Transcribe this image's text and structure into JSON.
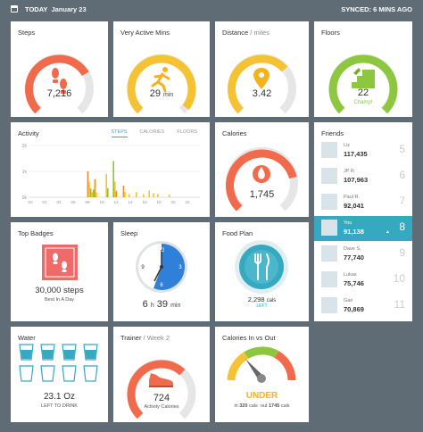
{
  "topbar": {
    "today": "TODAY",
    "date": "January 23",
    "synced": "SYNCED: 6 MINS AGO"
  },
  "tiles": {
    "steps": {
      "title": "Steps",
      "value": "7,216",
      "progress": 0.72
    },
    "active": {
      "title": "Very Active Mins",
      "value": "29",
      "unit": "min",
      "progress": 0.97
    },
    "distance": {
      "title": "Distance",
      "title_sub": "/ miles",
      "value": "3.42",
      "progress": 0.68
    },
    "floors": {
      "title": "Floors",
      "value": "22",
      "note": "Champ!",
      "progress": 1.0
    },
    "activity": {
      "title": "Activity",
      "tabs": [
        "STEPS",
        "CALORIES",
        "FLOORS"
      ]
    },
    "calories": {
      "title": "Calories",
      "value": "1,745",
      "progress": 0.78
    },
    "badges": {
      "title": "Top Badges",
      "value": "30,000 steps",
      "note": "Best In A Day"
    },
    "sleep": {
      "title": "Sleep",
      "hours": "6",
      "h": "h",
      "mins": "39",
      "min": "min",
      "clock": [
        "12",
        "3",
        "6",
        "9"
      ]
    },
    "food": {
      "title": "Food Plan",
      "cals": "2,298",
      "cals_unit": "cals",
      "left": "LEFT"
    },
    "water": {
      "title": "Water",
      "value": "23.1 Oz",
      "note": "LEFT TO DRINK",
      "filled": 3,
      "total": 8
    },
    "trainer": {
      "title": "Trainer",
      "title_sub": "/ Week 2",
      "value": "724",
      "note": "Activity Calories",
      "progress": 0.66
    },
    "cio": {
      "title": "Calories In vs Out",
      "status": "UNDER",
      "in": "320",
      "out": "1745",
      "cals": "cals",
      "in_label": "in",
      "out_label": "out"
    },
    "friends": {
      "title": "Friends",
      "list": [
        {
          "name": "Liz",
          "steps": "117,435",
          "rank": "5",
          "me": false
        },
        {
          "name": "JP R.",
          "steps": "107,963",
          "rank": "6",
          "me": false
        },
        {
          "name": "Paul R.",
          "steps": "92,041",
          "rank": "7",
          "me": false
        },
        {
          "name": "You",
          "steps": "91,138",
          "rank": "8",
          "me": true
        },
        {
          "name": "Dave S.",
          "steps": "77,740",
          "rank": "9",
          "me": false
        },
        {
          "name": "Lukas",
          "steps": "75,746",
          "rank": "10",
          "me": false
        },
        {
          "name": "Gair",
          "steps": "70,869",
          "rank": "11",
          "me": false
        }
      ]
    }
  },
  "chart_data": {
    "type": "bar",
    "title": "Activity",
    "x_ticks": [
      "00",
      "02",
      "04",
      "06",
      "08",
      "10",
      "12",
      "14",
      "16",
      "18",
      "20",
      "22"
    ],
    "y_ticks": [
      "0k",
      "1k",
      "2k"
    ],
    "ylim": [
      0,
      2000
    ],
    "series": [
      {
        "color": "#ef8f2f",
        "values": [
          0,
          0,
          0,
          0,
          0,
          0,
          0,
          0,
          0,
          0,
          0,
          0,
          0,
          0,
          0,
          0,
          0,
          0,
          0,
          0,
          0,
          0,
          0,
          0,
          0,
          0,
          0,
          0,
          0,
          0,
          0,
          0,
          0,
          0,
          0,
          0,
          0,
          0,
          0,
          0,
          0,
          0,
          0,
          0,
          0,
          0,
          0,
          0,
          0,
          0,
          0,
          0,
          0,
          0,
          0,
          0,
          0,
          0,
          0,
          0,
          0,
          0,
          0,
          0,
          0,
          0,
          0,
          0,
          0,
          0,
          0,
          0,
          0,
          0
        ]
      }
    ],
    "bars": [
      {
        "h": 8.2,
        "v": 1000,
        "c": "#ef8f2f"
      },
      {
        "h": 8.4,
        "v": 600,
        "c": "#f4c32d"
      },
      {
        "h": 8.6,
        "v": 350,
        "c": "#8fc72b"
      },
      {
        "h": 8.8,
        "v": 200,
        "c": "#f4c32d"
      },
      {
        "h": 9.0,
        "v": 300,
        "c": "#8fc72b"
      },
      {
        "h": 9.2,
        "v": 700,
        "c": "#ef8f2f"
      },
      {
        "h": 9.4,
        "v": 180,
        "c": "#f4c32d"
      },
      {
        "h": 10.8,
        "v": 900,
        "c": "#f4c32d"
      },
      {
        "h": 11.0,
        "v": 350,
        "c": "#8fc72b"
      },
      {
        "h": 11.8,
        "v": 1400,
        "c": "#8fc72b"
      },
      {
        "h": 12.0,
        "v": 600,
        "c": "#f4c32d"
      },
      {
        "h": 12.2,
        "v": 250,
        "c": "#ef8f2f"
      },
      {
        "h": 13.2,
        "v": 450,
        "c": "#ef8f2f"
      },
      {
        "h": 13.4,
        "v": 200,
        "c": "#f4c32d"
      },
      {
        "h": 14.0,
        "v": 120,
        "c": "#f4c32d"
      },
      {
        "h": 15.0,
        "v": 200,
        "c": "#f4c32d"
      },
      {
        "h": 16.0,
        "v": 120,
        "c": "#f4c32d"
      },
      {
        "h": 16.8,
        "v": 260,
        "c": "#f4c32d"
      },
      {
        "h": 17.4,
        "v": 150,
        "c": "#f4c32d"
      },
      {
        "h": 18.0,
        "v": 130,
        "c": "#f4c32d"
      },
      {
        "h": 19.6,
        "v": 100,
        "c": "#f4c32d"
      }
    ]
  },
  "colors": {
    "steps": "#f06a4b",
    "active": "#f5c233",
    "distance": "#f5c233",
    "floors": "#8dc63f",
    "calories": "#f06a4b",
    "sleep": "#2f80d8",
    "teal": "#35a9c0",
    "track": "#e6e6e6"
  }
}
